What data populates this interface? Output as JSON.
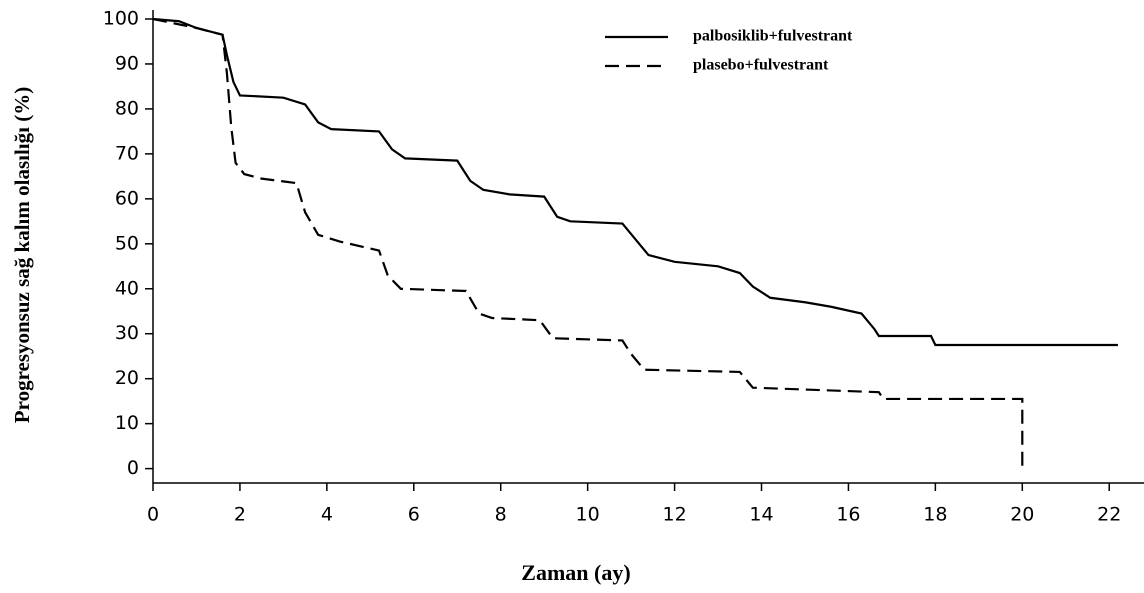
{
  "chart_data": {
    "type": "line",
    "x_label": "Zaman (ay)",
    "y_label": "Progresyonsuz sağ kalım olasılığı (%)",
    "xlim": [
      0,
      22.8
    ],
    "ylim": [
      -3.2,
      102
    ],
    "xticks": [
      0,
      2,
      4,
      6,
      8,
      10,
      12,
      14,
      16,
      18,
      20,
      22
    ],
    "yticks": [
      0,
      10,
      20,
      30,
      40,
      50,
      60,
      70,
      80,
      90,
      100
    ],
    "legend": "top-right",
    "series": [
      {
        "name": "palbosiklib+fulvestrant",
        "color": "#000000",
        "dash": "solid",
        "x": [
          0,
          0.6,
          1.0,
          1.6,
          1.7,
          1.85,
          2.0,
          3.0,
          3.5,
          3.8,
          4.1,
          5.2,
          5.5,
          5.8,
          7.0,
          7.3,
          7.6,
          8.2,
          9.0,
          9.3,
          9.6,
          10.8,
          11.1,
          11.4,
          12.0,
          13.0,
          13.5,
          13.8,
          14.2,
          15.0,
          15.6,
          16.3,
          16.6,
          16.7,
          17.9,
          18.0,
          22.2
        ],
        "values": [
          100,
          99.5,
          98,
          96.5,
          92,
          86,
          83,
          82.5,
          81,
          77,
          75.5,
          75,
          71,
          69,
          68.5,
          64,
          62,
          61,
          60.5,
          56,
          55,
          54.5,
          51,
          47.5,
          46,
          45,
          43.5,
          40.5,
          38,
          37,
          36,
          34.5,
          31,
          29.5,
          29.5,
          27.5,
          27.5
        ]
      },
      {
        "name": "plasebo+fulvestrant",
        "color": "#000000",
        "dash": "dashed",
        "x": [
          0,
          1.0,
          1.6,
          1.7,
          1.8,
          1.9,
          2.1,
          2.5,
          3.3,
          3.5,
          3.8,
          4.3,
          5.2,
          5.4,
          5.7,
          7.2,
          7.5,
          7.8,
          8.9,
          9.2,
          10.8,
          11.0,
          11.3,
          13.5,
          13.8,
          16.7,
          16.8,
          20.0,
          20.0
        ],
        "values": [
          100,
          98,
          96.5,
          88,
          76,
          68,
          65.5,
          64.5,
          63.5,
          57,
          52,
          50.5,
          48.5,
          43,
          40,
          39.5,
          34.5,
          33.5,
          33,
          29,
          28.5,
          25.5,
          22,
          21.5,
          18,
          17,
          15.5,
          15.5,
          0
        ]
      }
    ]
  }
}
